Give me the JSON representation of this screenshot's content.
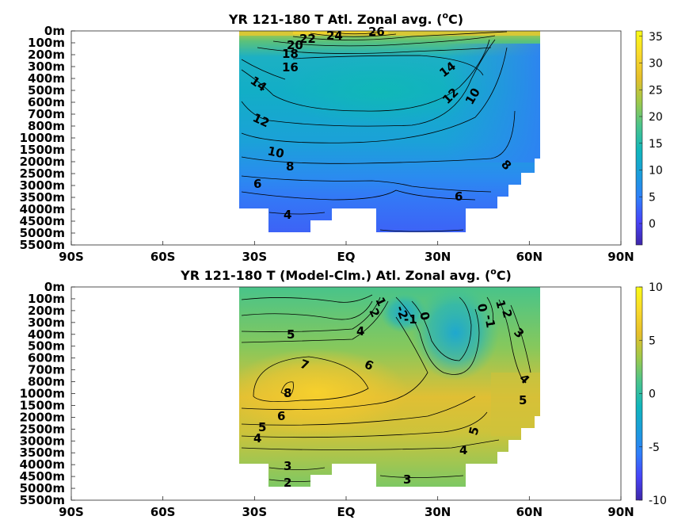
{
  "chart_data": [
    {
      "type": "heatmap",
      "title_main": "YR 121-180 T Atl. Zonal avg. (",
      "title_sup": "o",
      "title_end": "C)",
      "x_tick_labels": [
        "90S",
        "60S",
        "30S",
        "EQ",
        "30N",
        "60N",
        "90N"
      ],
      "x_tick_values": [
        -90,
        -60,
        -30,
        0,
        30,
        60,
        90
      ],
      "y_tick_labels": [
        "0m",
        "100m",
        "200m",
        "300m",
        "400m",
        "500m",
        "600m",
        "700m",
        "800m",
        "1000m",
        "1500m",
        "2000m",
        "2500m",
        "3000m",
        "3500m",
        "4000m",
        "4500m",
        "5000m",
        "5500m"
      ],
      "xlim": [
        -90,
        90
      ],
      "colorbar": {
        "range": [
          -4,
          36
        ],
        "tick_values": [
          0,
          5,
          10,
          15,
          20,
          25,
          30,
          35
        ],
        "tick_labels": [
          "0",
          "5",
          "10",
          "15",
          "20",
          "25",
          "30",
          "35"
        ]
      },
      "contour_labels": [
        "26",
        "24",
        "22",
        "20",
        "18",
        "16",
        "14",
        "12",
        "10",
        "8",
        "6",
        "4",
        "14",
        "12",
        "10",
        "8",
        "6"
      ],
      "colormap": [
        "#3e26a8",
        "#4743f8",
        "#2f7ffa",
        "#1a9ddb",
        "#10b6bc",
        "#4cc48a",
        "#9fc94a",
        "#e6bf2a",
        "#f9d92b",
        "#f9fb15"
      ]
    },
    {
      "type": "heatmap",
      "title_main": "YR 121-180 T (Model-Clm.) Atl. Zonal avg. (",
      "title_sup": "o",
      "title_end": "C)",
      "x_tick_labels": [
        "90S",
        "60S",
        "30S",
        "EQ",
        "30N",
        "60N",
        "90N"
      ],
      "x_tick_values": [
        -90,
        -60,
        -30,
        0,
        30,
        60,
        90
      ],
      "y_tick_labels": [
        "0m",
        "100m",
        "200m",
        "300m",
        "400m",
        "500m",
        "600m",
        "700m",
        "800m",
        "1000m",
        "1500m",
        "2000m",
        "2500m",
        "3000m",
        "3500m",
        "4000m",
        "4500m",
        "5000m",
        "5500m"
      ],
      "xlim": [
        -90,
        90
      ],
      "colorbar": {
        "range": [
          -10,
          10
        ],
        "tick_values": [
          10,
          5,
          0,
          -5,
          -10
        ],
        "tick_labels": [
          "10",
          "5",
          "0",
          "-5",
          "-10"
        ]
      },
      "contour_labels": [
        "5",
        "4",
        "7",
        "6",
        "8",
        "6",
        "5",
        "4",
        "3",
        "2",
        "3",
        "2",
        "1",
        "-2",
        "-1",
        "0",
        "-1",
        "0",
        "1",
        "2",
        "3",
        "4",
        "5",
        "5",
        "4"
      ],
      "colormap": [
        "#3e26a8",
        "#4743f8",
        "#2f7ffa",
        "#1a9ddb",
        "#10b6bc",
        "#4cc48a",
        "#9fc94a",
        "#e6bf2a",
        "#f9d92b",
        "#f9fb15"
      ]
    }
  ]
}
